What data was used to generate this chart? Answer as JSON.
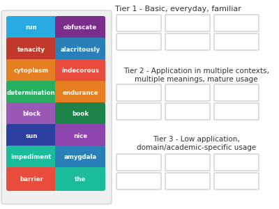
{
  "words": [
    {
      "text": "run",
      "color": "#29ABE2",
      "col": 0,
      "row": 0
    },
    {
      "text": "obfuscate",
      "color": "#7B2D8B",
      "col": 1,
      "row": 0
    },
    {
      "text": "tenacity",
      "color": "#C0392B",
      "col": 0,
      "row": 1
    },
    {
      "text": "alacritously",
      "color": "#2980B9",
      "col": 1,
      "row": 1
    },
    {
      "text": "cytoplasm",
      "color": "#E67E22",
      "col": 0,
      "row": 2
    },
    {
      "text": "indecorous",
      "color": "#E74C3C",
      "col": 1,
      "row": 2
    },
    {
      "text": "determination",
      "color": "#27AE60",
      "col": 0,
      "row": 3
    },
    {
      "text": "endurance",
      "color": "#E67E22",
      "col": 1,
      "row": 3
    },
    {
      "text": "block",
      "color": "#9B59B6",
      "col": 0,
      "row": 4
    },
    {
      "text": "book",
      "color": "#1E8449",
      "col": 1,
      "row": 4
    },
    {
      "text": "sun",
      "color": "#2C3E9E",
      "col": 0,
      "row": 5
    },
    {
      "text": "nice",
      "color": "#8E44AD",
      "col": 1,
      "row": 5
    },
    {
      "text": "impediment",
      "color": "#1ABC9C",
      "col": 0,
      "row": 6
    },
    {
      "text": "amygdala",
      "color": "#2980B9",
      "col": 1,
      "row": 6
    },
    {
      "text": "barrier",
      "color": "#E74C3C",
      "col": 0,
      "row": 7
    },
    {
      "text": "the",
      "color": "#1ABC9C",
      "col": 1,
      "row": 7
    }
  ],
  "tier1_title": "Tier 1 - Basic, everyday, familiar",
  "tier2_line1": "Tier 2 - Application in multiple contexts,",
  "tier2_line2": "multiple meanings, mature usage",
  "tier3_line1": "Tier 3 - Low application,",
  "tier3_line2": "domain/academic-specific usage",
  "background_color": "#ffffff",
  "box_border_color": "#bbbbbb",
  "word_text_color": "#ffffff",
  "panel_bg": "#f0f0f0",
  "panel_border": "#cccccc"
}
